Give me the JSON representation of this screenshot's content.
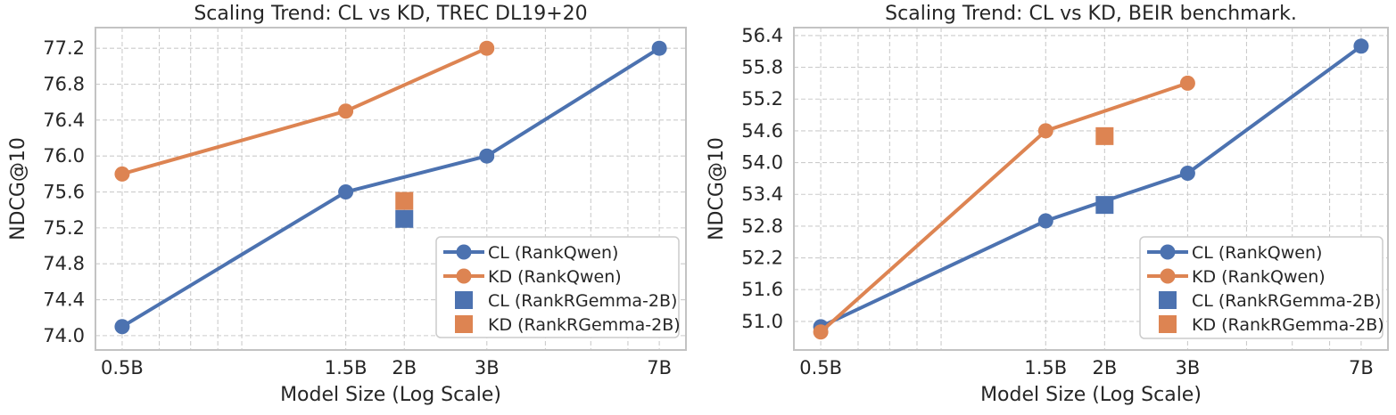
{
  "figure": {
    "background": "#ffffff",
    "text_color": "#262626",
    "grid_color": "#cccccc",
    "spine_color": "#c3c3c3",
    "legend_border_color": "#cccccc",
    "series_colors": {
      "cl_blue": "#4C72B0",
      "kd_orange": "#DD8452"
    }
  },
  "chart_data": [
    {
      "type": "line",
      "title": "Scaling Trend: CL vs KD, TREC DL19+20",
      "xlabel": "Model Size (Log Scale)",
      "ylabel": "NDCG@10",
      "x_scale": "log",
      "grid": true,
      "legend_position": "lower right",
      "xlim_log": [
        -0.358,
        0.902
      ],
      "ylim": [
        73.84,
        77.43
      ],
      "xticks": [
        {
          "label": "0.5B",
          "value": 0.5
        },
        {
          "label": "1.5B",
          "value": 1.5
        },
        {
          "label": "2B",
          "value": 2
        },
        {
          "label": "3B",
          "value": 3
        },
        {
          "label": "7B",
          "value": 7
        }
      ],
      "x_minor_gridlines": [
        0.6,
        0.7,
        0.8,
        0.9,
        4,
        5,
        6
      ],
      "yticks": [
        {
          "label": "77.2",
          "value": 77.2
        },
        {
          "label": "76.8",
          "value": 76.8
        },
        {
          "label": "76.4",
          "value": 76.4
        },
        {
          "label": "76.0",
          "value": 76.0
        },
        {
          "label": "75.6",
          "value": 75.6
        },
        {
          "label": "75.2",
          "value": 75.2
        },
        {
          "label": "74.8",
          "value": 74.8
        },
        {
          "label": "74.4",
          "value": 74.4
        },
        {
          "label": "74.0",
          "value": 74.0
        }
      ],
      "series": [
        {
          "name": "CL (RankQwen)",
          "color_key": "cl_blue",
          "marker": "circle",
          "line": true,
          "x": [
            0.5,
            1.5,
            3,
            7
          ],
          "y": [
            74.1,
            75.6,
            76.0,
            77.2
          ]
        },
        {
          "name": "KD (RankQwen)",
          "color_key": "kd_orange",
          "marker": "circle",
          "line": true,
          "x": [
            0.5,
            1.5,
            3
          ],
          "y": [
            75.8,
            76.5,
            77.2
          ]
        },
        {
          "name": "CL (RankRGemma-2B)",
          "color_key": "cl_blue",
          "marker": "square",
          "line": false,
          "x": [
            2
          ],
          "y": [
            75.3
          ]
        },
        {
          "name": "KD (RankRGemma-2B)",
          "color_key": "kd_orange",
          "marker": "square",
          "line": false,
          "x": [
            2
          ],
          "y": [
            75.5
          ]
        }
      ]
    },
    {
      "type": "line",
      "title": "Scaling Trend: CL vs KD, BEIR benchmark.",
      "xlabel": "Model Size (Log Scale)",
      "ylabel": "NDCG@10",
      "x_scale": "log",
      "grid": true,
      "legend_position": "lower right",
      "xlim_log": [
        -0.358,
        0.902
      ],
      "ylim": [
        50.46,
        56.55
      ],
      "xticks": [
        {
          "label": "0.5B",
          "value": 0.5
        },
        {
          "label": "1.5B",
          "value": 1.5
        },
        {
          "label": "2B",
          "value": 2
        },
        {
          "label": "3B",
          "value": 3
        },
        {
          "label": "7B",
          "value": 7
        }
      ],
      "x_minor_gridlines": [
        0.6,
        0.7,
        0.8,
        0.9,
        4,
        5,
        6
      ],
      "yticks": [
        {
          "label": "56.4",
          "value": 56.4
        },
        {
          "label": "55.8",
          "value": 55.8
        },
        {
          "label": "55.2",
          "value": 55.2
        },
        {
          "label": "54.6",
          "value": 54.6
        },
        {
          "label": "54.0",
          "value": 54.0
        },
        {
          "label": "53.4",
          "value": 53.4
        },
        {
          "label": "52.8",
          "value": 52.8
        },
        {
          "label": "52.2",
          "value": 52.2
        },
        {
          "label": "51.6",
          "value": 51.6
        },
        {
          "label": "51.0",
          "value": 51.0
        }
      ],
      "series": [
        {
          "name": "CL (RankQwen)",
          "color_key": "cl_blue",
          "marker": "circle",
          "line": true,
          "x": [
            0.5,
            1.5,
            3,
            7
          ],
          "y": [
            50.9,
            52.9,
            53.8,
            56.2
          ]
        },
        {
          "name": "KD (RankQwen)",
          "color_key": "kd_orange",
          "marker": "circle",
          "line": true,
          "x": [
            0.5,
            1.5,
            3
          ],
          "y": [
            50.8,
            54.6,
            55.5
          ]
        },
        {
          "name": "CL (RankRGemma-2B)",
          "color_key": "cl_blue",
          "marker": "square",
          "line": false,
          "x": [
            2
          ],
          "y": [
            53.2
          ]
        },
        {
          "name": "KD (RankRGemma-2B)",
          "color_key": "kd_orange",
          "marker": "square",
          "line": false,
          "x": [
            2
          ],
          "y": [
            54.5
          ]
        }
      ]
    }
  ]
}
